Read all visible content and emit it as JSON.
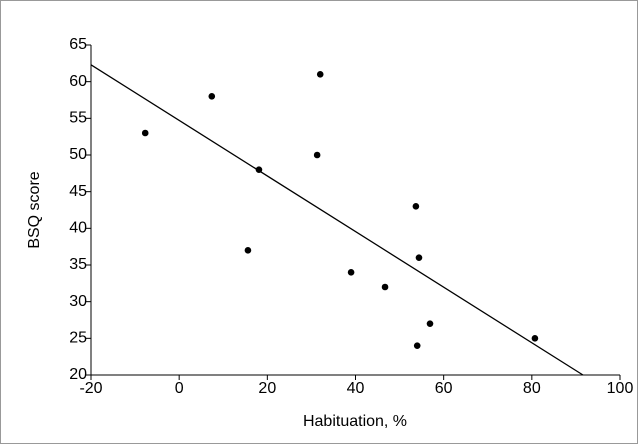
{
  "chart_data": {
    "type": "scatter",
    "x_label": "Habituation, %",
    "y_label": "BSQ score",
    "x": [
      -7.7,
      7.4,
      15.6,
      18.1,
      31.3,
      32,
      39,
      46.7,
      53.7,
      54.4,
      54,
      56.9,
      80.7
    ],
    "values": [
      53,
      58,
      37,
      48,
      50,
      61,
      34,
      32,
      43,
      36,
      24,
      27,
      25
    ],
    "color": "#000000",
    "fit_line": {
      "x": [
        -20,
        91.6
      ],
      "y": [
        62.3,
        20
      ]
    },
    "xlim": [
      -20,
      100
    ],
    "xticks": [
      -20,
      0,
      20,
      40,
      60,
      80,
      100
    ],
    "ylim": [
      20,
      65
    ],
    "yticks": [
      20,
      25,
      30,
      35,
      40,
      45,
      50,
      55,
      60,
      65
    ]
  }
}
